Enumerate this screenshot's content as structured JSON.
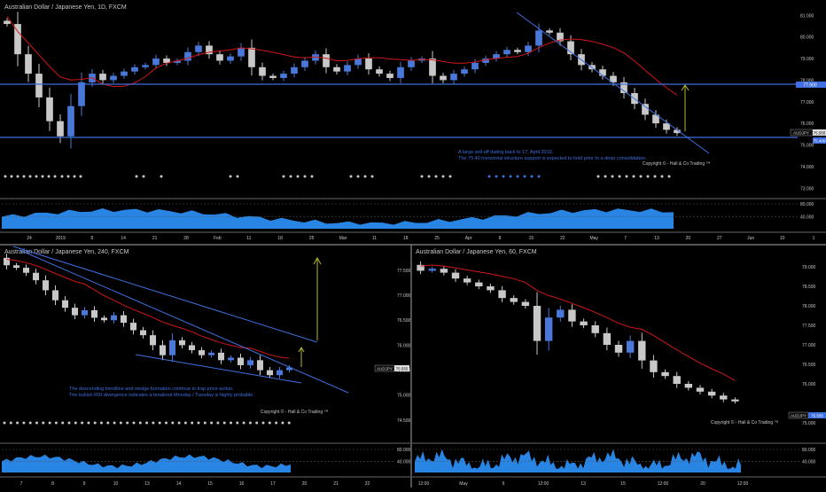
{
  "theme": {
    "background": "#000000",
    "bull": "#4a78d8",
    "bear": "#c8c8c8",
    "ma": "#d01818",
    "hline": "#3f6fe0",
    "trend": "#3f6fe0",
    "projection": "#b8b830",
    "rsi_fill": "#2b8cf0",
    "axis_text": "#c8c8c8",
    "note_text": "#3f6fe0",
    "divider": "#8a8a8a"
  },
  "panels": {
    "daily": {
      "title": "Australian Dollar / Japanese Yen, 1D, FXCM",
      "price_ticks": [
        "81.000",
        "80.000",
        "79.000",
        "78.000",
        "77.000",
        "76.000",
        "75.000",
        "74.000",
        "73.000"
      ],
      "price_tag_label": "AUDJPY",
      "price_tag_value": "75.555",
      "level_upper": "77.900",
      "level_lower": "75.400",
      "note_line1": "A large sell-off dating back to 17, April 2019.",
      "note_line2": "The 75.40 horizontal structure support is expected to hold prior to a deep consolidation.",
      "copyright": "Copyright © - Hall & Co Trading ™",
      "rsi_ticks": [
        "80.000",
        "40.000"
      ],
      "date_ticks": [
        "24",
        "2019",
        "8",
        "14",
        "21",
        "28",
        "Feb",
        "11",
        "18",
        "25",
        "Mar",
        "11",
        "18",
        "25",
        "Apr",
        "8",
        "15",
        "22",
        "May",
        "7",
        "13",
        "20",
        "27",
        "Jun",
        "10",
        "1"
      ]
    },
    "h4": {
      "title": "Australian Dollar / Japanese Yen, 240, FXCM",
      "price_ticks": [
        "77.500",
        "77.000",
        "76.500",
        "76.000",
        "75.500",
        "75.000",
        "74.500"
      ],
      "price_tag_label": "AUDJPY",
      "price_tag_value": "75.555",
      "note_line1": "The descending trendline and wedge formation continue to trap price-action.",
      "note_line2": "The bullish RSI divergence indicates a breakout Monday / Tuesday is highly probable.",
      "copyright": "Copyright © - Hall & Co Trading ™",
      "rsi_ticks": [
        "80.000",
        "40.000"
      ],
      "date_ticks": [
        "7",
        "8",
        "9",
        "10",
        "13",
        "14",
        "15",
        "16",
        "17",
        "20",
        "21",
        "22"
      ]
    },
    "h1": {
      "title": "Australian Dollar / Japanese Yen, 60, FXCM",
      "price_ticks": [
        "79.000",
        "78.500",
        "78.000",
        "77.500",
        "77.000",
        "76.500",
        "76.000",
        "75.000"
      ],
      "price_tag_label": "AUDJPY",
      "price_tag_value": "75.555",
      "copyright": "Copyright © - Hall & Co Trading ™",
      "rsi_ticks": [
        "80.000",
        "40.000"
      ],
      "date_ticks": [
        "12:00",
        "May",
        "6",
        "12:00",
        "13",
        "15",
        "12:00",
        "20",
        "12:00"
      ]
    }
  },
  "chart_data": [
    {
      "type": "candlestick",
      "title": "Australian Dollar / Japanese Yen, 1D, FXCM",
      "ylim": [
        72.6,
        81.3
      ],
      "horizontal_levels": [
        77.9,
        75.4
      ],
      "close_series_approx": [
        80.6,
        79.2,
        78.3,
        77.2,
        76.1,
        75.4,
        76.8,
        77.9,
        78.3,
        78.0,
        78.2,
        78.4,
        78.6,
        78.7,
        79.0,
        78.8,
        78.9,
        79.3,
        79.6,
        79.2,
        78.9,
        79.1,
        79.5,
        78.6,
        78.2,
        78.1,
        78.3,
        78.6,
        78.9,
        79.2,
        78.6,
        78.4,
        78.7,
        79.0,
        78.5,
        78.3,
        78.1,
        78.6,
        78.9,
        79.0,
        78.2,
        78.0,
        78.3,
        78.5,
        78.8,
        79.0,
        79.2,
        79.4,
        79.3,
        79.6,
        80.3,
        80.2,
        79.8,
        79.2,
        78.7,
        78.5,
        78.2,
        77.9,
        77.4,
        76.9,
        76.4,
        76.0,
        75.7,
        75.55
      ]
    },
    {
      "type": "candlestick",
      "title": "Australian Dollar / Japanese Yen, 240, FXCM",
      "ylim": [
        74.25,
        77.8
      ],
      "close_series_approx": [
        77.6,
        77.55,
        77.45,
        77.3,
        77.1,
        76.9,
        76.75,
        76.6,
        76.7,
        76.55,
        76.5,
        76.6,
        76.45,
        76.3,
        76.2,
        76.0,
        75.8,
        76.1,
        76.0,
        75.9,
        75.8,
        75.85,
        75.7,
        75.75,
        75.6,
        75.7,
        75.5,
        75.4,
        75.5,
        75.555
      ]
    },
    {
      "type": "candlestick",
      "title": "Australian Dollar / Japanese Yen, 60, FXCM",
      "ylim": [
        74.75,
        79.25
      ],
      "close_series_approx": [
        78.9,
        78.95,
        78.85,
        78.7,
        78.6,
        78.5,
        78.4,
        78.2,
        78.1,
        78.0,
        77.1,
        77.7,
        77.9,
        77.6,
        77.5,
        77.3,
        77.0,
        76.8,
        77.1,
        76.6,
        76.3,
        76.2,
        76.0,
        75.9,
        75.8,
        75.7,
        75.6,
        75.55
      ]
    }
  ]
}
